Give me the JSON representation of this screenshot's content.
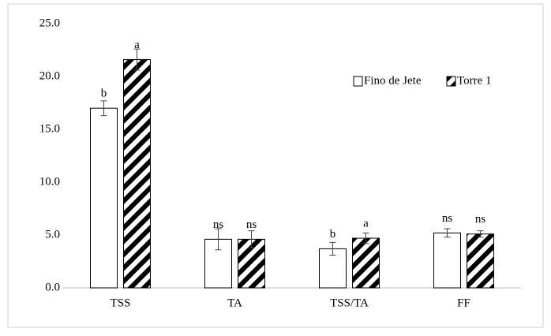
{
  "chart_data": {
    "type": "bar",
    "categories": [
      "TSS",
      "TA",
      "TSS/TA",
      "FF"
    ],
    "series": [
      {
        "name": "Fino de Jete",
        "color": "#000000",
        "pattern": "none",
        "values": [
          17.0,
          4.6,
          3.7,
          5.2
        ],
        "errors": [
          0.7,
          1.0,
          0.6,
          0.4
        ],
        "letters": [
          "b",
          "ns",
          "b",
          "ns"
        ]
      },
      {
        "name": "Torre 1",
        "color": "#000000",
        "pattern": "hatch",
        "values": [
          21.6,
          4.6,
          4.7,
          5.1
        ],
        "errors": [
          1.0,
          0.8,
          0.5,
          0.3
        ],
        "letters": [
          "a",
          "ns",
          "a",
          "ns"
        ]
      }
    ],
    "ylim": [
      0,
      25
    ],
    "yticks": [
      {
        "value": 0,
        "label": "0.0"
      },
      {
        "value": 5,
        "label": "5.0"
      },
      {
        "value": 10,
        "label": "10.0"
      },
      {
        "value": 15,
        "label": "15.0"
      },
      {
        "value": 20,
        "label": "20.0"
      },
      {
        "value": 25,
        "label": "25.0"
      }
    ],
    "grid": false,
    "legend": "top-right"
  }
}
